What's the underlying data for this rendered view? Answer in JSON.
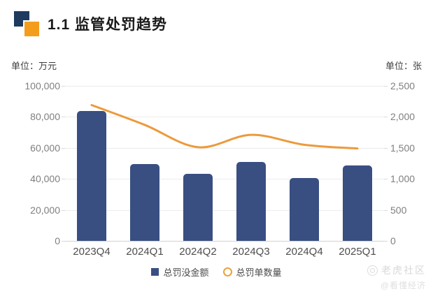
{
  "header": {
    "title": "1.1 监管处罚趋势"
  },
  "units": {
    "left": "单位：万元",
    "right": "单位：张"
  },
  "legend": {
    "bar_label": "总罚没金额",
    "line_label": "总罚单数量"
  },
  "watermark": {
    "line1": "老虎社区",
    "line2": "@看懂经济"
  },
  "colors": {
    "bar": "#394F82",
    "line": "#EC9A3C",
    "legend_circle_border": "#E8A33D",
    "logo_navy": "#1E3A5F",
    "logo_orange": "#F49D1D"
  },
  "chart_data": {
    "type": "bar",
    "subtype": "combo-bar-line-dual-axis",
    "title": "1.1 监管处罚趋势",
    "categories": [
      "2023Q4",
      "2024Q1",
      "2024Q2",
      "2024Q3",
      "2024Q4",
      "2025Q1"
    ],
    "series": [
      {
        "name": "总罚没金额",
        "type": "bar",
        "axis": "left",
        "unit": "万元",
        "values": [
          84000,
          49600,
          43200,
          50900,
          40400,
          48700
        ]
      },
      {
        "name": "总罚单数量",
        "type": "line",
        "axis": "right",
        "unit": "张",
        "smooth": true,
        "values": [
          2190,
          1870,
          1510,
          1710,
          1550,
          1490
        ]
      }
    ],
    "left_axis": {
      "label": "单位：万元",
      "min": 0,
      "max": 100000,
      "tick_labels": [
        "100,000",
        "80,000",
        "60,000",
        "40,000",
        "20,000",
        "0"
      ]
    },
    "right_axis": {
      "label": "单位：张",
      "min": 0,
      "max": 2500,
      "tick_labels": [
        "2,500",
        "2,000",
        "1,500",
        "1,000",
        "500",
        "0"
      ]
    },
    "grid": true,
    "legend_position": "bottom-center"
  }
}
